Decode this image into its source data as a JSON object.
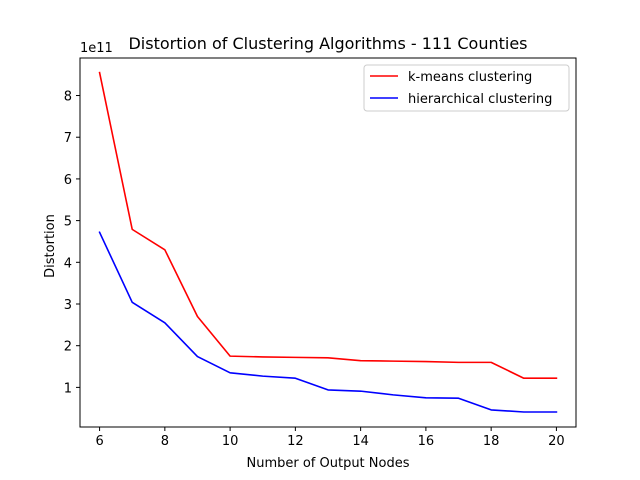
{
  "chart_data": {
    "type": "line",
    "title": "Distortion of Clustering Algorithms - 111 Counties",
    "xlabel": "Number of Output Nodes",
    "ylabel": "Distortion",
    "y_offset_label": "1e11",
    "xlim": [
      5.4,
      20.6
    ],
    "ylim": [
      0.05,
      8.9
    ],
    "x_ticks": [
      6,
      8,
      10,
      12,
      14,
      16,
      18,
      20
    ],
    "y_ticks": [
      1,
      2,
      3,
      4,
      5,
      6,
      7,
      8
    ],
    "grid": false,
    "legend_position": "top-right",
    "x": [
      6,
      7,
      8,
      9,
      10,
      11,
      12,
      13,
      14,
      15,
      16,
      17,
      18,
      19,
      20
    ],
    "series": [
      {
        "name": "k-means clustering",
        "color": "#ff0000",
        "values": [
          8.55,
          4.79,
          4.3,
          2.7,
          1.75,
          1.73,
          1.72,
          1.71,
          1.64,
          1.63,
          1.62,
          1.6,
          1.6,
          1.22,
          1.22
        ]
      },
      {
        "name": "hierarchical clustering",
        "color": "#0000ff",
        "values": [
          4.72,
          3.04,
          2.55,
          1.74,
          1.35,
          1.27,
          1.22,
          0.94,
          0.91,
          0.82,
          0.75,
          0.74,
          0.46,
          0.41,
          0.41
        ]
      }
    ]
  }
}
